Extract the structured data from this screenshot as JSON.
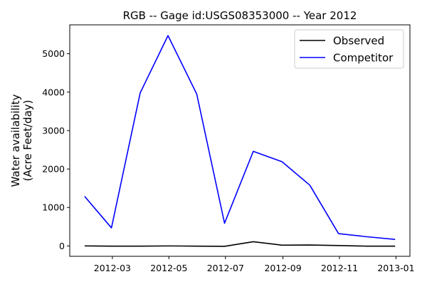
{
  "chart_data": {
    "type": "line",
    "title": "RGB -- Gage id:USGS08353000 -- Year 2012",
    "xlabel": "",
    "ylabel_line1": "Water availability",
    "ylabel_line2": "(Acre Feet/day)",
    "x": [
      "2012-01-31",
      "2012-02-29",
      "2012-03-31",
      "2012-04-30",
      "2012-05-31",
      "2012-06-30",
      "2012-07-31",
      "2012-08-31",
      "2012-09-30",
      "2012-10-31",
      "2012-11-30",
      "2012-12-31"
    ],
    "series": [
      {
        "name": "Observed",
        "color": "#000000",
        "values": [
          0,
          -5,
          -5,
          0,
          -5,
          -10,
          110,
          20,
          25,
          10,
          -5,
          -5
        ]
      },
      {
        "name": "Competitor",
        "color": "#0000ff",
        "values": [
          1290,
          470,
          3980,
          5470,
          3950,
          590,
          2460,
          2190,
          1580,
          320,
          240,
          170
        ]
      }
    ],
    "xticks": [
      {
        "date": "2012-03-01",
        "label": "2012-03"
      },
      {
        "date": "2012-05-01",
        "label": "2012-05"
      },
      {
        "date": "2012-07-01",
        "label": "2012-07"
      },
      {
        "date": "2012-09-01",
        "label": "2012-09"
      },
      {
        "date": "2012-11-01",
        "label": "2012-11"
      },
      {
        "date": "2013-01-01",
        "label": "2013-01"
      }
    ],
    "yticks": [
      0,
      1000,
      2000,
      3000,
      4000,
      5000
    ],
    "xlim": [
      "2012-01-15",
      "2013-01-16"
    ],
    "ylim": [
      -270,
      5750
    ],
    "legend_position": "top-right"
  }
}
